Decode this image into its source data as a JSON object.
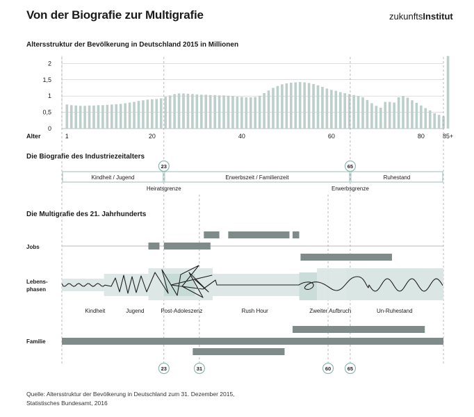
{
  "header": {
    "title": "Von der Biografie zur Multigrafie",
    "logo_light": "zukunfts",
    "logo_bold": "Institut"
  },
  "sections": {
    "age_structure": "Altersstruktur der Bevölkerung in Deutschland 2015 in Millionen",
    "industrial": "Die Biografie des Industriezeitalters",
    "multigraphy": "Die Multigrafie des 21. Jahrhunderts"
  },
  "chart_data": [
    {
      "type": "bar",
      "title": "Altersstruktur der Bevölkerung in Deutschland 2015 in Millionen",
      "xlabel": "Alter",
      "ylabel": "",
      "ylim": [
        0,
        2.2
      ],
      "yticks": [
        "0",
        "0,5",
        "1",
        "1,5",
        "2"
      ],
      "ytick_values": [
        0,
        0.5,
        1,
        1.5,
        2
      ],
      "xticks": [
        {
          "age": 1,
          "label": "1"
        },
        {
          "age": 20,
          "label": "20"
        },
        {
          "age": 40,
          "label": "40"
        },
        {
          "age": 60,
          "label": "60"
        },
        {
          "age": 80,
          "label": "80"
        },
        {
          "age": 86,
          "label": "85+"
        }
      ],
      "ages": [
        1,
        2,
        3,
        4,
        5,
        6,
        7,
        8,
        9,
        10,
        11,
        12,
        13,
        14,
        15,
        16,
        17,
        18,
        19,
        20,
        21,
        22,
        23,
        24,
        25,
        26,
        27,
        28,
        29,
        30,
        31,
        32,
        33,
        34,
        35,
        36,
        37,
        38,
        39,
        40,
        41,
        42,
        43,
        44,
        45,
        46,
        47,
        48,
        49,
        50,
        51,
        52,
        53,
        54,
        55,
        56,
        57,
        58,
        59,
        60,
        61,
        62,
        63,
        64,
        65,
        66,
        67,
        68,
        69,
        70,
        71,
        72,
        73,
        74,
        75,
        76,
        77,
        78,
        79,
        80,
        81,
        82,
        83,
        84,
        85,
        86
      ],
      "values": [
        0.74,
        0.72,
        0.71,
        0.7,
        0.7,
        0.71,
        0.71,
        0.72,
        0.72,
        0.73,
        0.74,
        0.75,
        0.76,
        0.78,
        0.8,
        0.82,
        0.85,
        0.87,
        0.89,
        0.9,
        0.91,
        0.93,
        0.98,
        1.02,
        1.06,
        1.08,
        1.08,
        1.07,
        1.06,
        1.05,
        1.04,
        1.04,
        1.03,
        1.03,
        1.02,
        1.02,
        1.01,
        1.0,
        0.98,
        0.97,
        0.96,
        0.96,
        0.97,
        1.01,
        1.09,
        1.17,
        1.25,
        1.31,
        1.36,
        1.39,
        1.41,
        1.42,
        1.43,
        1.42,
        1.4,
        1.37,
        1.33,
        1.28,
        1.23,
        1.19,
        1.16,
        1.12,
        1.09,
        1.06,
        1.03,
        1.0,
        0.96,
        0.88,
        0.78,
        0.7,
        0.64,
        0.82,
        0.82,
        0.8,
        0.96,
        1.0,
        0.95,
        0.87,
        0.79,
        0.71,
        0.63,
        0.56,
        0.47,
        0.42,
        0.38,
        2.23
      ]
    },
    {
      "type": "table",
      "title": "Die Biografie des Industriezeitalters",
      "phases": [
        {
          "label": "Kindheit / Jugend",
          "from_age": 0,
          "to_age": 23
        },
        {
          "label": "Erwerbszeit / Familienzeit",
          "from_age": 23,
          "to_age": 65
        },
        {
          "label": "Ruhestand",
          "from_age": 65,
          "to_age": 86
        }
      ],
      "markers": [
        {
          "age": 23,
          "label": "23",
          "caption": "Heiratsgrenze"
        },
        {
          "age": 65,
          "label": "65",
          "caption": "Erwerbsgrenze"
        }
      ]
    },
    {
      "type": "table",
      "title": "Die Multigrafie des 21. Jahrhunderts",
      "rows": [
        "Jobs",
        "Lebens-\nphasen",
        "Familie"
      ],
      "jobs": [
        {
          "from_age": 32,
          "to_age": 35.5
        },
        {
          "from_age": 37.5,
          "to_age": 51.3
        },
        {
          "from_age": 52,
          "to_age": 53.5
        },
        {
          "from_age": 19.5,
          "to_age": 22
        },
        {
          "from_age": 23,
          "to_age": 33.5
        },
        {
          "from_age": 53.8,
          "to_age": 74.4
        }
      ],
      "life_phases": [
        {
          "label": "Kindheit",
          "center_age": 7.5
        },
        {
          "label": "Jugend",
          "center_age": 16.5
        },
        {
          "label": "Post-Adoleszenz",
          "center_age": 27
        },
        {
          "label": "Rush Hour",
          "center_age": 43.5
        },
        {
          "label": "Zweiter Aufbruch",
          "center_age": 60.5
        },
        {
          "label": "Un-Ruhestand",
          "center_age": 75
        }
      ],
      "family": [
        {
          "from_age": 52,
          "to_age": 81.8
        },
        {
          "from_age": 0,
          "to_age": 86
        },
        {
          "from_age": 29.5,
          "to_age": 50.2
        }
      ],
      "markers": [
        {
          "age": 23,
          "label": "23"
        },
        {
          "age": 31,
          "label": "31"
        },
        {
          "age": 60,
          "label": "60"
        },
        {
          "age": 65,
          "label": "65"
        }
      ]
    }
  ],
  "source": {
    "line1": "Quelle: Altersstruktur der Bevölkerung in Deutschland zum 31. Dezember 2015,",
    "line2": "Statistisches Bundesamt, 2016"
  },
  "colors": {
    "bar": "#bccfca",
    "band_light": "#d9e6e3",
    "band_mid": "#c4d9d4",
    "bar_dark": "#7f8b89",
    "outline": "#9dbeb8",
    "line": "#8fb7b1",
    "text": "#1a1a1a"
  }
}
